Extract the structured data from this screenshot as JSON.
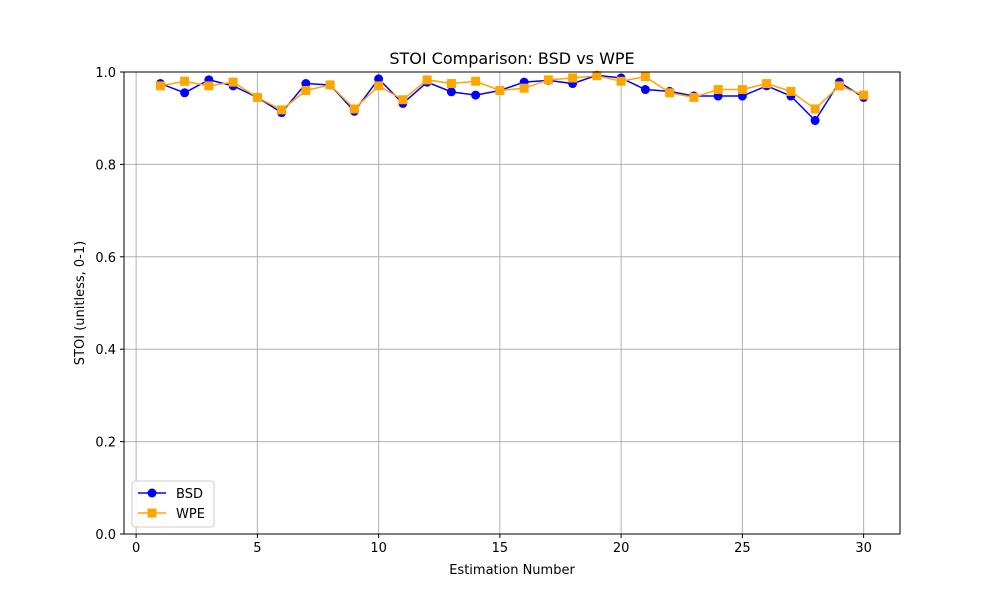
{
  "chart_data": {
    "type": "line",
    "title": "STOI Comparison: BSD vs WPE",
    "xlabel": "Estimation Number",
    "ylabel": "STOI (unitless, 0-1)",
    "xlim": [
      -0.5,
      31.5
    ],
    "ylim": [
      0,
      1
    ],
    "xticks": [
      0,
      5,
      10,
      15,
      20,
      25,
      30
    ],
    "yticks": [
      0.0,
      0.2,
      0.4,
      0.6,
      0.8,
      1.0
    ],
    "xtick_labels": [
      "0",
      "5",
      "10",
      "15",
      "20",
      "25",
      "30"
    ],
    "ytick_labels": [
      "0.0",
      "0.2",
      "0.4",
      "0.6",
      "0.8",
      "1.0"
    ],
    "grid": true,
    "legend_position": "lower-left",
    "x": [
      1,
      2,
      3,
      4,
      5,
      6,
      7,
      8,
      9,
      10,
      11,
      12,
      13,
      14,
      15,
      16,
      17,
      18,
      19,
      20,
      21,
      22,
      23,
      24,
      25,
      26,
      27,
      28,
      29,
      30
    ],
    "series": [
      {
        "name": "BSD",
        "color": "#0000ff",
        "marker": "circle",
        "values": [
          0.975,
          0.955,
          0.983,
          0.97,
          0.945,
          0.912,
          0.975,
          0.972,
          0.915,
          0.985,
          0.932,
          0.978,
          0.957,
          0.95,
          0.96,
          0.978,
          0.982,
          0.975,
          0.993,
          0.987,
          0.962,
          0.958,
          0.948,
          0.948,
          0.948,
          0.97,
          0.948,
          0.895,
          0.978,
          0.945
        ]
      },
      {
        "name": "WPE",
        "color": "#ffa500",
        "marker": "square",
        "values": [
          0.97,
          0.98,
          0.97,
          0.978,
          0.945,
          0.918,
          0.96,
          0.972,
          0.92,
          0.97,
          0.94,
          0.983,
          0.975,
          0.98,
          0.96,
          0.965,
          0.983,
          0.987,
          0.992,
          0.98,
          0.99,
          0.955,
          0.945,
          0.962,
          0.962,
          0.975,
          0.958,
          0.92,
          0.97,
          0.95
        ]
      }
    ]
  }
}
